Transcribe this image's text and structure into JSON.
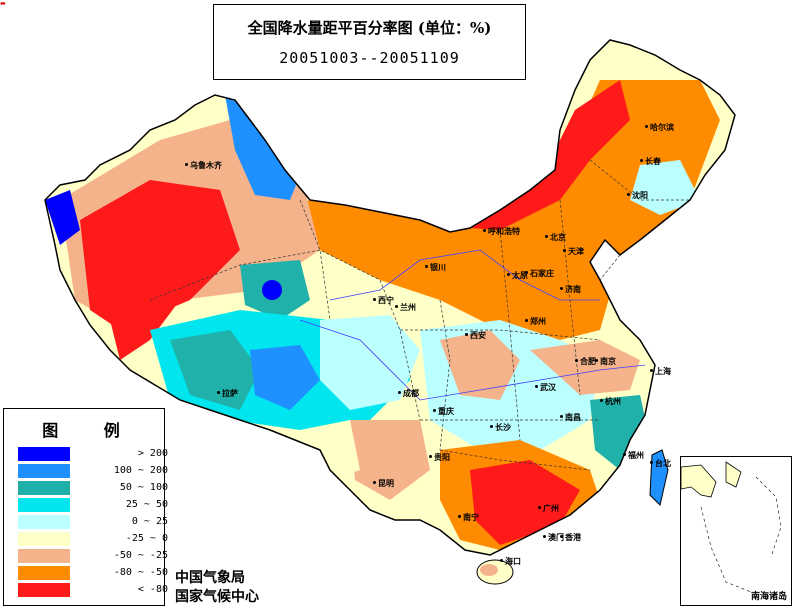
{
  "title": {
    "line1": "全国降水量距平百分率图 (单位：%)",
    "line2": "20051003--20051109"
  },
  "legend": {
    "title": "图 例",
    "items": [
      {
        "label": "> 200",
        "color": "#0000ff"
      },
      {
        "label": "100 ~ 200",
        "color": "#1e90ff"
      },
      {
        "label": "50 ~ 100",
        "color": "#20b2aa"
      },
      {
        "label": "25 ~ 50",
        "color": "#00e5ee"
      },
      {
        "label": "0 ~ 25",
        "color": "#bbffff"
      },
      {
        "label": "-25 ~ 0",
        "color": "#ffffc8"
      },
      {
        "label": "-50 ~ -25",
        "color": "#f5b38c"
      },
      {
        "label": "-80 ~ -50",
        "color": "#ff8c00"
      },
      {
        "label": "< -80",
        "color": "#ff1a1a"
      }
    ]
  },
  "credits": {
    "line1": "中国气象局",
    "line2": "国家气候中心"
  },
  "inset": {
    "label": "南海诸岛"
  },
  "cities": [
    {
      "name": "乌鲁木齐"
    },
    {
      "name": "哈尔滨"
    },
    {
      "name": "长春"
    },
    {
      "name": "沈阳"
    },
    {
      "name": "呼和浩特"
    },
    {
      "name": "北京"
    },
    {
      "name": "天津"
    },
    {
      "name": "太原"
    },
    {
      "name": "石家庄"
    },
    {
      "name": "济南"
    },
    {
      "name": "银川"
    },
    {
      "name": "西宁"
    },
    {
      "name": "兰州"
    },
    {
      "name": "西安"
    },
    {
      "name": "郑州"
    },
    {
      "name": "合肥"
    },
    {
      "name": "南京"
    },
    {
      "name": "上海"
    },
    {
      "name": "拉萨"
    },
    {
      "name": "成都"
    },
    {
      "name": "重庆"
    },
    {
      "name": "武汉"
    },
    {
      "name": "杭州"
    },
    {
      "name": "长沙"
    },
    {
      "name": "南昌"
    },
    {
      "name": "福州"
    },
    {
      "name": "贵阳"
    },
    {
      "name": "昆明"
    },
    {
      "name": "南宁"
    },
    {
      "name": "广州"
    },
    {
      "name": "台北"
    },
    {
      "name": "澳门"
    },
    {
      "name": "香港"
    },
    {
      "name": "海口"
    }
  ]
}
